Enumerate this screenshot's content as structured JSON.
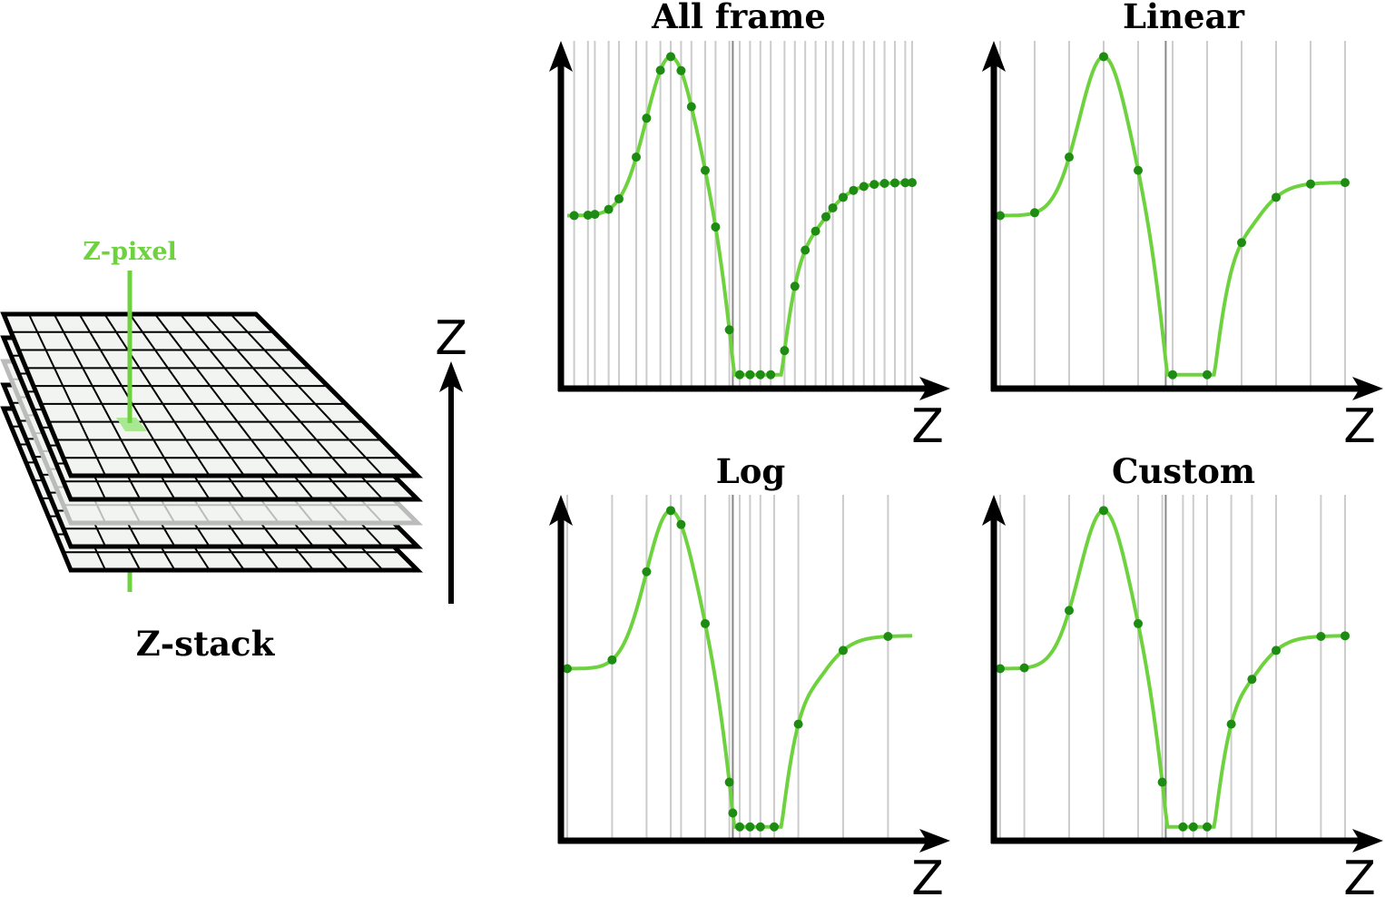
{
  "colors": {
    "curve": "#6ed23f",
    "sample": "#1e8c12",
    "frame_line": "#cccccc",
    "center_line": "#888888",
    "axis": "#000000",
    "plate_fill": "#f2f4f2",
    "plate_stroke": "#000000",
    "plate_ghost_stroke": "#bbbbbb",
    "z_pixel": "#6ed23f",
    "z_pixel_cell": "#a8e890"
  },
  "stack": {
    "label": "Z-stack",
    "pixel_label": "Z-pixel",
    "axis_label": "Z",
    "plate_count": 5,
    "highlighted_plate_index": 2
  },
  "panels": [
    {
      "title": "All frame",
      "axis_label": "Z",
      "frames": [
        0.02,
        0.06,
        0.08,
        0.12,
        0.15,
        0.2,
        0.23,
        0.27,
        0.3,
        0.33,
        0.36,
        0.4,
        0.43,
        0.47,
        0.5,
        0.53,
        0.56,
        0.59,
        0.63,
        0.66,
        0.69,
        0.72,
        0.75,
        0.77,
        0.8,
        0.83,
        0.86,
        0.89,
        0.92,
        0.95,
        0.98,
        1.0
      ]
    },
    {
      "title": "Linear",
      "axis_label": "Z",
      "frames": [
        0.0,
        0.1,
        0.2,
        0.3,
        0.4,
        0.5,
        0.6,
        0.7,
        0.8,
        0.9,
        1.0
      ]
    },
    {
      "title": "Log",
      "axis_label": "Z",
      "frames": [
        0.0,
        0.13,
        0.23,
        0.3,
        0.33,
        0.4,
        0.47,
        0.48,
        0.5,
        0.53,
        0.56,
        0.6,
        0.67,
        0.8,
        0.93
      ]
    },
    {
      "title": "Custom",
      "axis_label": "Z",
      "frames": [
        0.0,
        0.07,
        0.2,
        0.3,
        0.4,
        0.47,
        0.53,
        0.56,
        0.6,
        0.67,
        0.73,
        0.8,
        0.93,
        1.0
      ]
    }
  ]
}
